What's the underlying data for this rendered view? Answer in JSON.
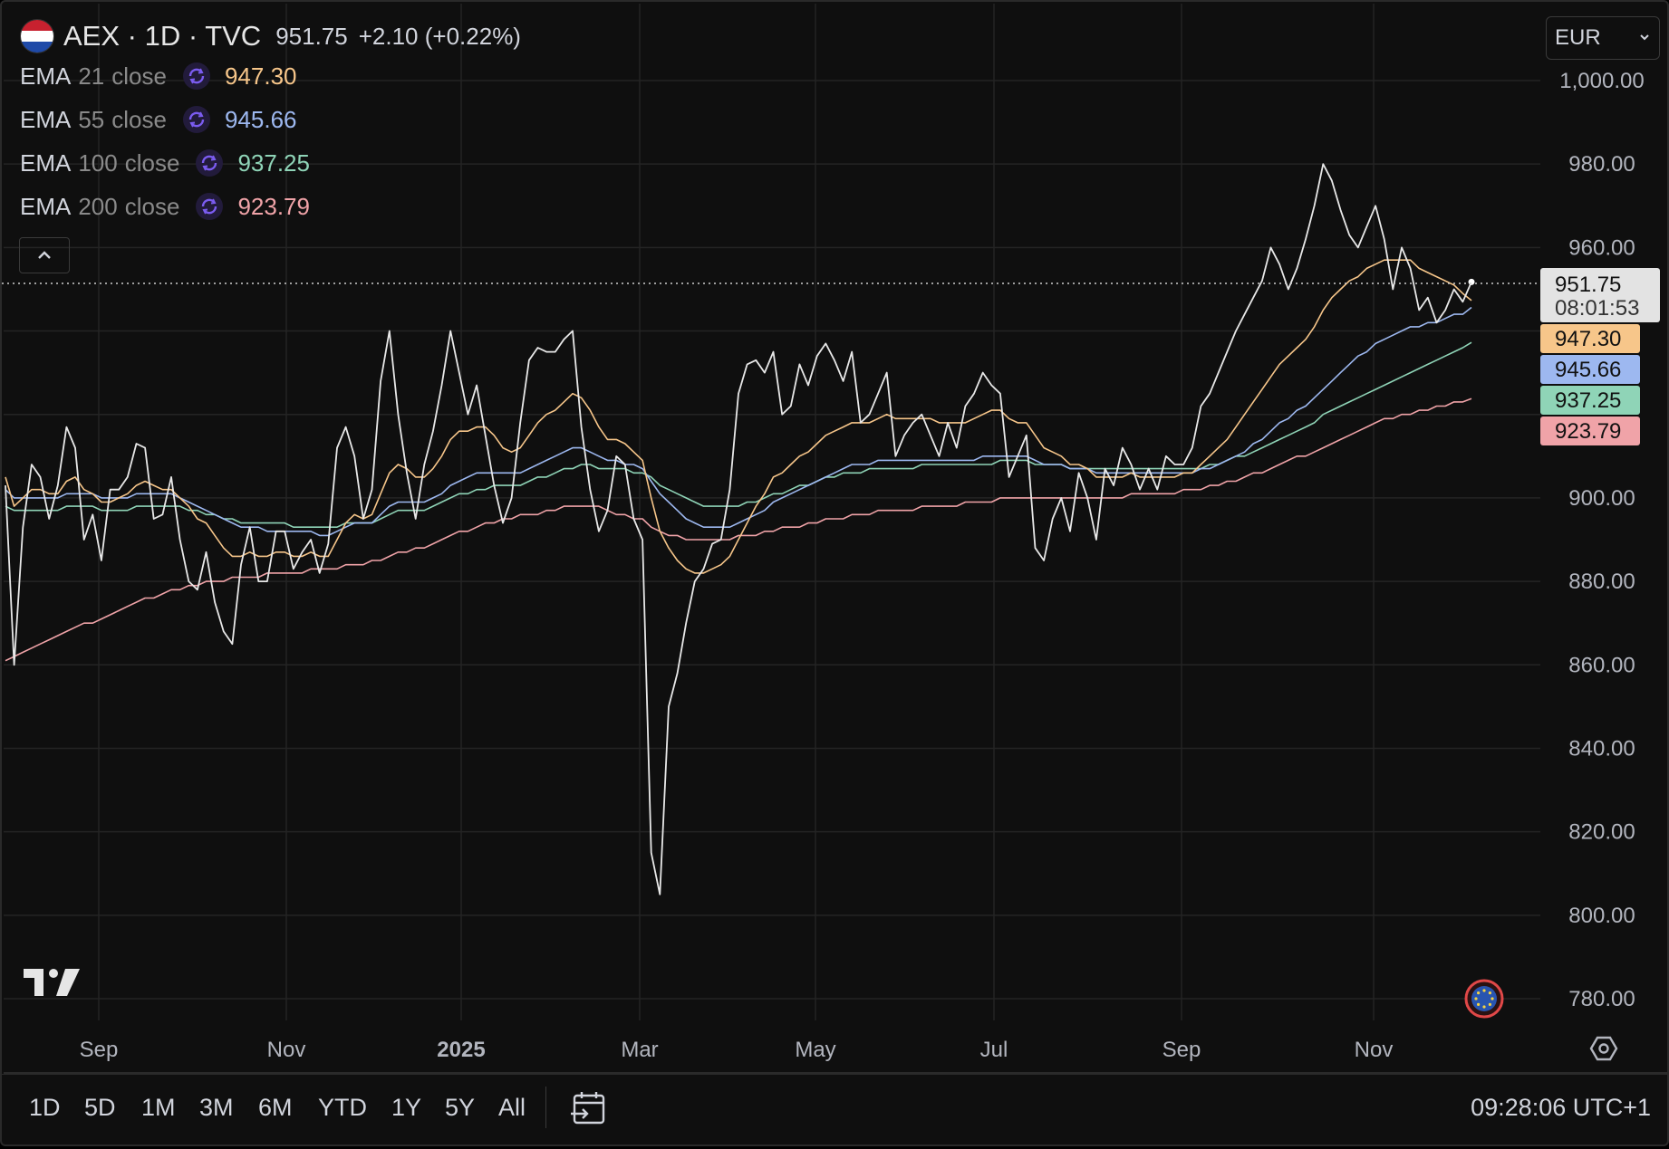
{
  "header": {
    "symbol": "AEX · 1D · TVC",
    "last": "951.75",
    "change": "+2.10 (+0.22%)"
  },
  "indicators": [
    {
      "name": "EMA",
      "length": "21",
      "source": "close",
      "value": "947.30",
      "color": "#f7c68a"
    },
    {
      "name": "EMA",
      "length": "55",
      "source": "close",
      "value": "945.66",
      "color": "#9db8f0"
    },
    {
      "name": "EMA",
      "length": "100",
      "source": "close",
      "value": "937.25",
      "color": "#8fd4b7"
    },
    {
      "name": "EMA",
      "length": "200",
      "source": "close",
      "value": "923.79",
      "color": "#f0a3a8"
    }
  ],
  "currency": "EUR",
  "price_tag": {
    "value": "951.75",
    "countdown": "08:01:53"
  },
  "ranges": [
    "1D",
    "5D",
    "1M",
    "3M",
    "6M",
    "YTD",
    "1Y",
    "5Y",
    "All"
  ],
  "clock": "09:28:06 UTC+1",
  "colors": {
    "price": "#e8e8e8",
    "background": "#0f0f0f",
    "grid": "#242424",
    "icon_purple": "#7b5cf0"
  },
  "chart_data": {
    "type": "line",
    "x_labels": [
      "Sep",
      "Nov",
      "2025",
      "Mar",
      "May",
      "Jul",
      "Sep",
      "Nov"
    ],
    "ylim": [
      780,
      1000
    ],
    "y_ticks": [
      "1,000.00",
      "980.00",
      "960.00",
      "900.00",
      "880.00",
      "860.00",
      "840.00",
      "820.00",
      "800.00",
      "780.00"
    ],
    "series": [
      {
        "key": "price",
        "values": [
          903,
          860,
          893,
          908,
          905,
          895,
          903,
          917,
          912,
          890,
          896,
          885,
          902,
          902,
          905,
          913,
          912,
          895,
          896,
          905,
          890,
          880,
          878,
          887,
          875,
          868,
          865,
          884,
          893,
          880,
          880,
          892,
          892,
          883,
          887,
          890,
          882,
          889,
          912,
          917,
          910,
          895,
          902,
          928,
          940,
          920,
          906,
          895,
          908,
          916,
          927,
          940,
          930,
          920,
          927,
          915,
          903,
          894,
          900,
          918,
          933,
          936,
          935,
          935,
          938,
          940,
          917,
          902,
          892,
          897,
          910,
          908,
          895,
          890,
          815,
          805,
          850,
          858,
          870,
          880,
          883,
          889,
          890,
          902,
          925,
          932,
          933,
          930,
          935,
          920,
          922,
          932,
          927,
          934,
          937,
          933,
          928,
          935,
          918,
          920,
          925,
          930,
          910,
          915,
          918,
          920,
          915,
          910,
          918,
          912,
          922,
          925,
          930,
          927,
          925,
          905,
          910,
          915,
          888,
          885,
          895,
          900,
          892,
          906,
          900,
          890,
          907,
          903,
          912,
          908,
          902,
          907,
          902,
          910,
          908,
          908,
          912,
          922,
          925,
          930,
          935,
          940,
          944,
          948,
          952,
          960,
          956,
          950,
          955,
          962,
          970,
          980,
          976,
          969,
          963,
          960,
          965,
          970,
          962,
          950,
          960,
          955,
          945,
          948,
          942,
          945,
          950,
          947,
          951.75
        ]
      },
      {
        "key": "ema21",
        "values": [
          905,
          898,
          900,
          902,
          902,
          901,
          901,
          904,
          905,
          902,
          901,
          899,
          899,
          900,
          901,
          903,
          904,
          903,
          902,
          902,
          900,
          898,
          895,
          894,
          891,
          888,
          886,
          886,
          887,
          886,
          886,
          887,
          887,
          886,
          886,
          887,
          886,
          886,
          890,
          894,
          896,
          895,
          896,
          901,
          906,
          908,
          907,
          905,
          905,
          907,
          910,
          914,
          916,
          916,
          917,
          917,
          915,
          912,
          911,
          912,
          915,
          918,
          920,
          921,
          923,
          925,
          924,
          921,
          917,
          914,
          914,
          913,
          911,
          909,
          900,
          892,
          888,
          885,
          883,
          882,
          882,
          883,
          884,
          886,
          890,
          894,
          898,
          901,
          905,
          906,
          908,
          910,
          911,
          913,
          915,
          916,
          917,
          918,
          918,
          918,
          919,
          920,
          919,
          919,
          919,
          919,
          919,
          918,
          918,
          918,
          918,
          919,
          920,
          921,
          921,
          919,
          918,
          918,
          915,
          912,
          911,
          910,
          908,
          908,
          907,
          905,
          905,
          905,
          905,
          906,
          905,
          905,
          905,
          905,
          905,
          906,
          906,
          908,
          910,
          912,
          914,
          917,
          920,
          923,
          926,
          929,
          932,
          934,
          936,
          938,
          941,
          945,
          948,
          950,
          952,
          953,
          955,
          956,
          957,
          957,
          957,
          957,
          955,
          954,
          953,
          952,
          951,
          949,
          947.3
        ]
      },
      {
        "key": "ema55",
        "values": [
          902,
          900,
          900,
          900,
          900,
          900,
          900,
          901,
          901,
          901,
          901,
          900,
          900,
          900,
          900,
          901,
          901,
          901,
          901,
          901,
          900,
          899,
          898,
          897,
          896,
          895,
          894,
          893,
          893,
          893,
          892,
          892,
          892,
          892,
          892,
          892,
          891,
          891,
          892,
          893,
          894,
          894,
          894,
          896,
          898,
          899,
          899,
          899,
          899,
          900,
          901,
          903,
          904,
          905,
          906,
          906,
          906,
          906,
          906,
          906,
          907,
          908,
          909,
          910,
          911,
          912,
          912,
          911,
          910,
          909,
          909,
          908,
          908,
          907,
          904,
          901,
          899,
          897,
          895,
          894,
          893,
          893,
          893,
          893,
          894,
          895,
          896,
          897,
          899,
          900,
          901,
          902,
          903,
          904,
          905,
          906,
          907,
          908,
          908,
          908,
          909,
          909,
          909,
          909,
          909,
          909,
          909,
          909,
          909,
          909,
          909,
          909,
          910,
          910,
          910,
          910,
          910,
          910,
          909,
          908,
          908,
          908,
          907,
          907,
          907,
          906,
          906,
          906,
          906,
          906,
          906,
          906,
          906,
          906,
          906,
          906,
          906,
          907,
          907,
          908,
          909,
          910,
          911,
          913,
          914,
          916,
          918,
          919,
          921,
          922,
          924,
          926,
          928,
          930,
          932,
          934,
          935,
          937,
          938,
          939,
          940,
          941,
          941,
          942,
          942,
          943,
          944,
          944,
          945.66
        ]
      },
      {
        "key": "ema100",
        "values": [
          898,
          897,
          897,
          897,
          897,
          897,
          897,
          898,
          898,
          898,
          898,
          897,
          897,
          897,
          897,
          898,
          898,
          898,
          898,
          898,
          898,
          897,
          897,
          896,
          896,
          895,
          895,
          894,
          894,
          894,
          894,
          894,
          894,
          893,
          893,
          893,
          893,
          893,
          893,
          894,
          894,
          894,
          894,
          895,
          896,
          897,
          897,
          897,
          897,
          898,
          899,
          900,
          901,
          901,
          902,
          902,
          903,
          903,
          903,
          903,
          904,
          905,
          905,
          906,
          907,
          907,
          908,
          908,
          907,
          907,
          907,
          907,
          906,
          906,
          905,
          903,
          902,
          901,
          900,
          899,
          898,
          898,
          898,
          898,
          898,
          899,
          899,
          900,
          901,
          901,
          902,
          903,
          903,
          904,
          905,
          905,
          906,
          906,
          906,
          907,
          907,
          907,
          907,
          907,
          907,
          908,
          908,
          908,
          908,
          908,
          908,
          908,
          908,
          908,
          909,
          909,
          909,
          909,
          908,
          908,
          908,
          908,
          907,
          907,
          907,
          907,
          907,
          907,
          907,
          907,
          907,
          907,
          907,
          907,
          907,
          907,
          907,
          907,
          908,
          908,
          909,
          910,
          910,
          911,
          912,
          913,
          914,
          915,
          916,
          917,
          918,
          920,
          921,
          922,
          923,
          924,
          925,
          926,
          927,
          928,
          929,
          930,
          931,
          932,
          933,
          934,
          935,
          936,
          937.25
        ]
      },
      {
        "key": "ema200",
        "values": [
          861,
          862,
          863,
          864,
          865,
          866,
          867,
          868,
          869,
          870,
          870,
          871,
          872,
          873,
          874,
          875,
          876,
          876,
          877,
          878,
          878,
          879,
          879,
          880,
          880,
          880,
          881,
          881,
          881,
          881,
          882,
          882,
          882,
          882,
          882,
          883,
          883,
          883,
          883,
          884,
          884,
          884,
          885,
          885,
          886,
          887,
          887,
          888,
          888,
          889,
          890,
          891,
          892,
          892,
          893,
          894,
          894,
          895,
          895,
          896,
          896,
          896,
          897,
          897,
          898,
          898,
          898,
          898,
          898,
          897,
          896,
          896,
          895,
          895,
          893,
          892,
          891,
          891,
          890,
          890,
          890,
          890,
          890,
          890,
          891,
          891,
          891,
          892,
          892,
          893,
          893,
          893,
          894,
          894,
          895,
          895,
          895,
          896,
          896,
          896,
          897,
          897,
          897,
          897,
          897,
          898,
          898,
          898,
          898,
          898,
          899,
          899,
          899,
          899,
          900,
          900,
          900,
          900,
          900,
          900,
          900,
          900,
          900,
          900,
          900,
          900,
          900,
          900,
          900,
          901,
          901,
          901,
          901,
          901,
          901,
          902,
          902,
          902,
          903,
          903,
          904,
          904,
          905,
          906,
          906,
          907,
          908,
          909,
          910,
          910,
          911,
          912,
          913,
          914,
          915,
          916,
          917,
          918,
          919,
          919,
          920,
          920,
          921,
          921,
          922,
          922,
          923,
          923,
          923.79
        ]
      }
    ]
  }
}
